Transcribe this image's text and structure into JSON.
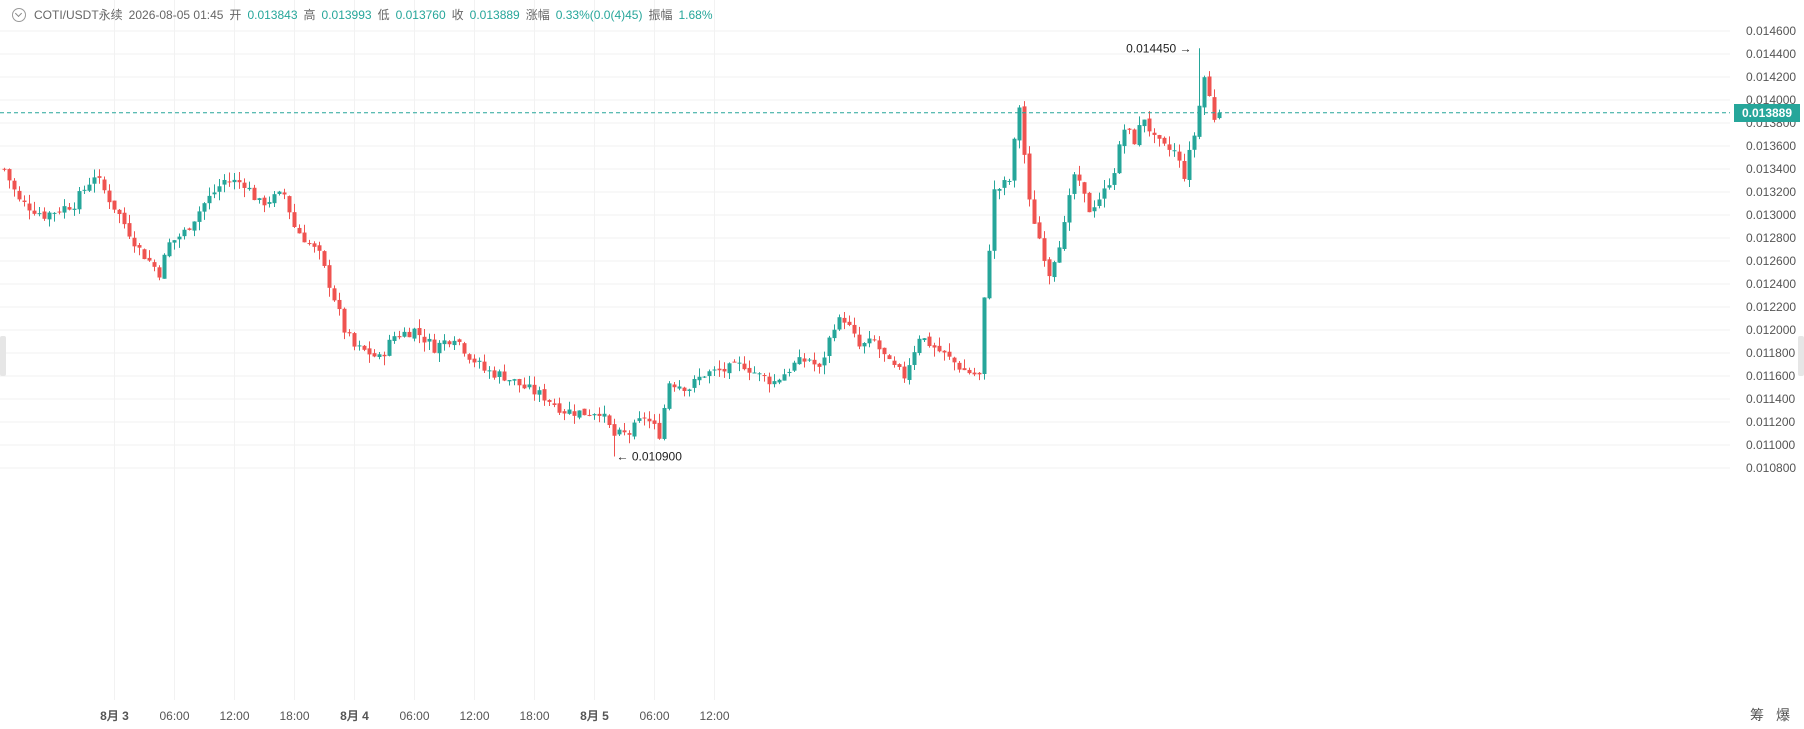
{
  "legend": {
    "symbol": "COTI/USDT永续",
    "datetime": "2026-08-05 01:45",
    "open_label": "开",
    "open": "0.013843",
    "high_label": "高",
    "high": "0.013993",
    "low_label": "低",
    "low": "0.013760",
    "close_label": "收",
    "close": "0.013889",
    "change_label": "涨幅",
    "change": "0.33%(0.0(4)45)",
    "amplitude_label": "振幅",
    "amplitude": "1.68%"
  },
  "last_price": "0.013889",
  "max_annotation": "0.014450",
  "min_annotation": "0.010900",
  "bottom_tabs": [
    "筹",
    "爆"
  ],
  "colors": {
    "up": "#26a69a",
    "down": "#ef5350",
    "grid": "#f2f2f2"
  },
  "chart_data": {
    "type": "candlestick",
    "interval_minutes": 30,
    "start": "2026-08-02 13:00",
    "ylim": [
      0.0108,
      0.0146
    ],
    "y_ticks": [
      "0.014600",
      "0.014400",
      "0.014200",
      "0.014000",
      "0.013800",
      "0.013600",
      "0.013400",
      "0.013200",
      "0.013000",
      "0.012800",
      "0.012600",
      "0.012400",
      "0.012200",
      "0.012000",
      "0.011800",
      "0.011600",
      "0.011400",
      "0.011200",
      "0.011000",
      "0.010800"
    ],
    "x_ticks": [
      "8月 3",
      "06:00",
      "12:00",
      "18:00",
      "8月 4",
      "06:00",
      "12:00",
      "18:00",
      "8月 5",
      "06:00",
      "12:00"
    ],
    "waypoints": [
      [
        0,
        0.0134
      ],
      [
        3,
        0.01312
      ],
      [
        8,
        0.013
      ],
      [
        14,
        0.0131
      ],
      [
        18,
        0.01335
      ],
      [
        23,
        0.013
      ],
      [
        27,
        0.0127
      ],
      [
        31,
        0.0125
      ],
      [
        33,
        0.01275
      ],
      [
        36,
        0.01285
      ],
      [
        40,
        0.0131
      ],
      [
        44,
        0.0133
      ],
      [
        48,
        0.01328
      ],
      [
        51,
        0.0131
      ],
      [
        56,
        0.01318
      ],
      [
        58,
        0.0129
      ],
      [
        63,
        0.01265
      ],
      [
        66,
        0.01228
      ],
      [
        68,
        0.012
      ],
      [
        70,
        0.01185
      ],
      [
        73,
        0.0118
      ],
      [
        75,
        0.01175
      ],
      [
        78,
        0.01195
      ],
      [
        82,
        0.012
      ],
      [
        86,
        0.01185
      ],
      [
        90,
        0.01195
      ],
      [
        93,
        0.01178
      ],
      [
        96,
        0.01165
      ],
      [
        100,
        0.0116
      ],
      [
        104,
        0.0115
      ],
      [
        108,
        0.01142
      ],
      [
        112,
        0.0113
      ],
      [
        116,
        0.01128
      ],
      [
        119,
        0.0113
      ],
      [
        122,
        0.01108
      ],
      [
        125,
        0.0111
      ],
      [
        128,
        0.01125
      ],
      [
        131,
        0.0111
      ],
      [
        133,
        0.01155
      ],
      [
        137,
        0.0115
      ],
      [
        140,
        0.01162
      ],
      [
        144,
        0.01165
      ],
      [
        148,
        0.0117
      ],
      [
        151,
        0.0116
      ],
      [
        154,
        0.01155
      ],
      [
        158,
        0.0117
      ],
      [
        161,
        0.01175
      ],
      [
        163,
        0.01165
      ],
      [
        166,
        0.01205
      ],
      [
        168,
        0.0121
      ],
      [
        171,
        0.01185
      ],
      [
        174,
        0.0119
      ],
      [
        177,
        0.0117
      ],
      [
        180,
        0.0116
      ],
      [
        183,
        0.01195
      ],
      [
        186,
        0.01185
      ],
      [
        189,
        0.01175
      ],
      [
        192,
        0.01165
      ],
      [
        195,
        0.0116
      ],
      [
        196,
        0.01225
      ],
      [
        198,
        0.0132
      ],
      [
        201,
        0.0133
      ],
      [
        203,
        0.01395
      ],
      [
        205,
        0.0131
      ],
      [
        207,
        0.0128
      ],
      [
        209,
        0.0125
      ],
      [
        212,
        0.0129
      ],
      [
        214,
        0.01335
      ],
      [
        217,
        0.01305
      ],
      [
        220,
        0.0132
      ],
      [
        222,
        0.0134
      ],
      [
        224,
        0.01375
      ],
      [
        226,
        0.01365
      ],
      [
        228,
        0.01385
      ],
      [
        230,
        0.01365
      ],
      [
        232,
        0.01358
      ],
      [
        234,
        0.01355
      ],
      [
        236,
        0.01335
      ],
      [
        238,
        0.0137
      ],
      [
        240,
        0.0142
      ],
      [
        242,
        0.01385
      ],
      [
        243,
        0.01389
      ]
    ],
    "annotations": [
      {
        "label": "0.014450",
        "index": 239,
        "price": 0.01445
      },
      {
        "label": "0.010900",
        "index": 122,
        "price": 0.0109
      }
    ]
  }
}
